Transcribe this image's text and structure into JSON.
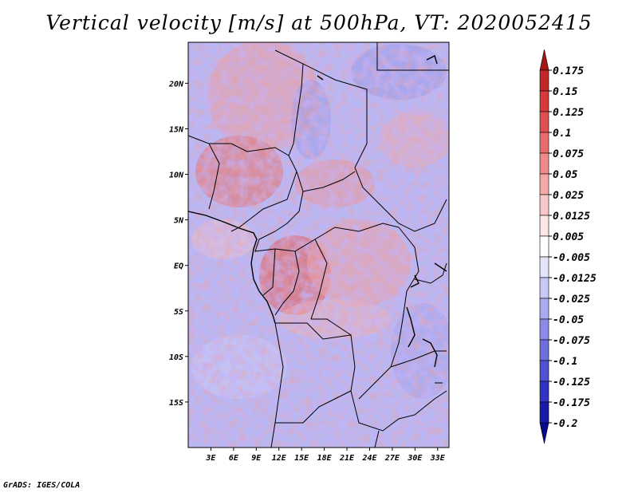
{
  "title": "Vertical velocity [m/s] at 500hPa, VT: 2020052415",
  "credit": "GrADS: IGES/COLA",
  "map": {
    "lat_labels": [
      "20N",
      "15N",
      "10N",
      "5N",
      "EQ",
      "5S",
      "10S",
      "15S"
    ],
    "lon_labels": [
      "3E",
      "6E",
      "9E",
      "12E",
      "15E",
      "18E",
      "21E",
      "24E",
      "27E",
      "30E",
      "33E"
    ],
    "lat_values": [
      20,
      15,
      10,
      5,
      0,
      -5,
      -10,
      -15
    ],
    "lon_values": [
      3,
      6,
      9,
      12,
      15,
      18,
      21,
      24,
      27,
      30,
      33
    ],
    "lat_range": [
      -20,
      24.5
    ],
    "lon_range": [
      0,
      34.5
    ]
  },
  "colorbar": {
    "labels": [
      "0.175",
      "0.15",
      "0.125",
      "0.1",
      "0.075",
      "0.05",
      "0.025",
      "0.0125",
      "0.005",
      "-0.005",
      "-0.0125",
      "-0.025",
      "-0.05",
      "-0.075",
      "-0.1",
      "-0.125",
      "-0.175",
      "-0.2"
    ],
    "colors": [
      "#a01818",
      "#c22828",
      "#d63a3a",
      "#e05050",
      "#e86c6c",
      "#ef8a8a",
      "#f4a8a8",
      "#f8c8c8",
      "#fce6e6",
      "#ffffff",
      "#e4e4fb",
      "#c8c8f6",
      "#aaaaf0",
      "#8c8ce8",
      "#6e6ede",
      "#5050d2",
      "#3232c4",
      "#1a1aa8",
      "#0a0a8a"
    ]
  }
}
